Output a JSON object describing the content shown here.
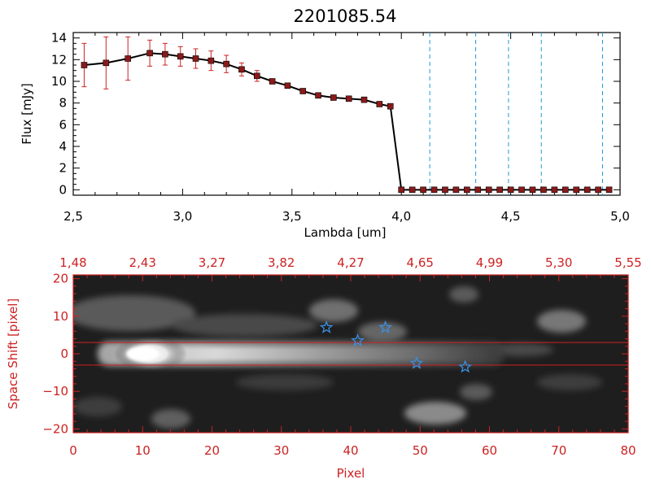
{
  "chart_data": [
    {
      "type": "line",
      "title": "2201085.54",
      "xlabel": "Lambda [um]",
      "ylabel": "Flux [mJy]",
      "xlim": [
        2.5,
        5.0
      ],
      "ylim": [
        -0.5,
        14.5
      ],
      "x_ticks": [
        2.5,
        3.0,
        3.5,
        4.0,
        4.5,
        5.0
      ],
      "x_tick_labels": [
        "2,5",
        "3,0",
        "3,5",
        "4,0",
        "4,5",
        "5,0"
      ],
      "y_ticks": [
        0,
        2,
        4,
        6,
        8,
        10,
        12,
        14
      ],
      "y_tick_labels": [
        "0",
        "2",
        "4",
        "6",
        "8",
        "10",
        "12",
        "14"
      ],
      "series": [
        {
          "color": "#000000",
          "marker_color": "#8b1a1a",
          "errorbar_color": "#cc2222",
          "x": [
            2.55,
            2.65,
            2.75,
            2.85,
            2.92,
            2.99,
            3.06,
            3.13,
            3.2,
            3.27,
            3.34,
            3.41,
            3.48,
            3.55,
            3.62,
            3.69,
            3.76,
            3.83,
            3.9,
            3.95,
            4.0,
            4.05,
            4.1,
            4.15,
            4.2,
            4.25,
            4.3,
            4.35,
            4.4,
            4.45,
            4.5,
            4.55,
            4.6,
            4.65,
            4.7,
            4.75,
            4.8,
            4.85,
            4.9,
            4.95
          ],
          "y": [
            11.5,
            11.7,
            12.1,
            12.6,
            12.5,
            12.3,
            12.1,
            11.9,
            11.6,
            11.1,
            10.5,
            10.0,
            9.6,
            9.1,
            8.7,
            8.5,
            8.4,
            8.3,
            7.9,
            7.7,
            0.0,
            0.0,
            0.0,
            0.0,
            0.0,
            0.0,
            0.0,
            0.0,
            0.0,
            0.0,
            0.0,
            0.0,
            0.0,
            0.0,
            0.0,
            0.0,
            0.0,
            0.0,
            0.0,
            0.0
          ],
          "yerr": [
            2.0,
            2.4,
            2.0,
            1.2,
            1.0,
            0.9,
            0.9,
            0.9,
            0.8,
            0.6,
            0.5,
            0.0,
            0.0,
            0.0,
            0.0,
            0.0,
            0.0,
            0.0,
            0.0,
            0.0,
            0.0,
            0.0,
            0.0,
            0.0,
            0.0,
            0.0,
            0.0,
            0.0,
            0.0,
            0.0,
            0.0,
            0.0,
            0.0,
            0.0,
            0.0,
            0.0,
            0.0,
            0.0,
            0.0,
            0.0
          ]
        }
      ],
      "vertical_lines": {
        "x": [
          4.13,
          4.34,
          4.49,
          4.64,
          4.92
        ],
        "color": "#1a9be0",
        "style": "dashed"
      }
    },
    {
      "type": "heatmap",
      "xlabel": "Pixel",
      "ylabel": "Space Shift [pixel]",
      "xlim": [
        0,
        80
      ],
      "ylim": [
        -21,
        21
      ],
      "x_ticks": [
        0,
        10,
        20,
        30,
        40,
        50,
        60,
        70,
        80
      ],
      "x_tick_labels": [
        "0",
        "10",
        "20",
        "30",
        "40",
        "50",
        "60",
        "70",
        "80"
      ],
      "y_ticks": [
        -20,
        -10,
        0,
        10,
        20
      ],
      "y_tick_labels": [
        "−20",
        "−10",
        "0",
        "10",
        "20"
      ],
      "top_axis_labels": [
        "1,48",
        "2,43",
        "3,27",
        "3,82",
        "4,27",
        "4,65",
        "4,99",
        "5,30",
        "5,55"
      ],
      "axis_color": "#cc2222",
      "colormap": "grayscale",
      "horizontal_lines": {
        "y": [
          3,
          -3
        ],
        "color": "#cc2222"
      },
      "star_markers": {
        "color": "#3a8fe0",
        "points": [
          [
            36.5,
            7
          ],
          [
            41,
            3.5
          ],
          [
            45,
            7
          ],
          [
            49.5,
            -2.5
          ],
          [
            56.5,
            -3.5
          ]
        ]
      }
    }
  ]
}
